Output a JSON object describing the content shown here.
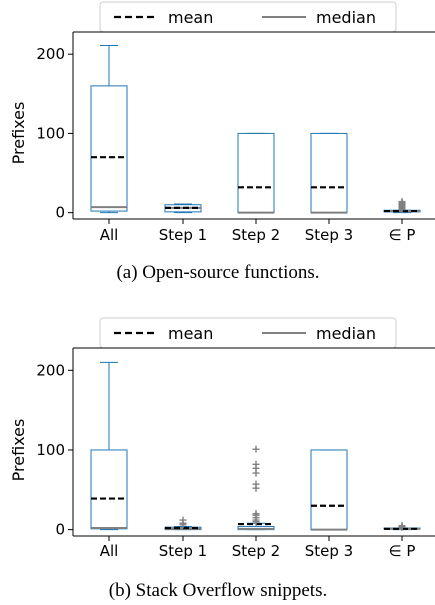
{
  "colors": {
    "box": "#1f77b4",
    "mean": "#000000",
    "median": "#808080",
    "flier": "#808080",
    "axis": "#000000"
  },
  "chart_data": [
    {
      "type": "box",
      "caption": "(a) Open-source functions.",
      "ylabel": "Prefixes",
      "ylim": [
        -8,
        228
      ],
      "yticks": [
        0,
        100,
        200
      ],
      "legend": {
        "placement": "top-center",
        "entries": [
          {
            "label": "mean",
            "style": "dashed"
          },
          {
            "label": "median",
            "style": "solid"
          }
        ]
      },
      "categories": [
        "All",
        "Step 1",
        "Step 2",
        "Step 3",
        "∈ P"
      ],
      "boxes": [
        {
          "whislo": 0,
          "q1": 2,
          "median": 7,
          "mean": 70,
          "q3": 160,
          "whishi": 211,
          "fliers": []
        },
        {
          "whislo": 0,
          "q1": 1,
          "median": 6,
          "mean": 6,
          "q3": 10,
          "whishi": 11,
          "fliers": []
        },
        {
          "whislo": 0,
          "q1": 0,
          "median": 0,
          "mean": 32,
          "q3": 100,
          "whishi": 100,
          "fliers": []
        },
        {
          "whislo": 0,
          "q1": 0,
          "median": 0,
          "mean": 32,
          "q3": 100,
          "whishi": 100,
          "fliers": []
        },
        {
          "whislo": 0,
          "q1": 1,
          "median": 2,
          "mean": 2,
          "q3": 3,
          "whishi": 3,
          "fliers": [
            4,
            5,
            6,
            7,
            8,
            9,
            10,
            11,
            12,
            13,
            14
          ]
        }
      ]
    },
    {
      "type": "box",
      "caption": "(b) Stack Overflow snippets.",
      "ylabel": "Prefixes",
      "ylim": [
        -8,
        228
      ],
      "yticks": [
        0,
        100,
        200
      ],
      "legend": {
        "placement": "top-center",
        "entries": [
          {
            "label": "mean",
            "style": "dashed"
          },
          {
            "label": "median",
            "style": "solid"
          }
        ]
      },
      "categories": [
        "All",
        "Step 1",
        "Step 2",
        "Step 3",
        "∈ P"
      ],
      "boxes": [
        {
          "whislo": 0,
          "q1": 1,
          "median": 2,
          "mean": 39,
          "q3": 100,
          "whishi": 210,
          "fliers": []
        },
        {
          "whislo": 0,
          "q1": 0,
          "median": 1,
          "mean": 2,
          "q3": 3,
          "whishi": 4,
          "fliers": [
            6,
            8,
            12
          ]
        },
        {
          "whislo": 0,
          "q1": 0,
          "median": 1,
          "mean": 7,
          "q3": 4,
          "whishi": 8,
          "fliers": [
            10,
            12,
            15,
            18,
            20,
            52,
            57,
            71,
            77,
            82,
            101
          ]
        },
        {
          "whislo": 0,
          "q1": 0,
          "median": 0,
          "mean": 30,
          "q3": 100,
          "whishi": 100,
          "fliers": []
        },
        {
          "whislo": 0,
          "q1": 1,
          "median": 1,
          "mean": 1,
          "q3": 2,
          "whishi": 2,
          "fliers": [
            3,
            4,
            5
          ]
        }
      ]
    }
  ]
}
